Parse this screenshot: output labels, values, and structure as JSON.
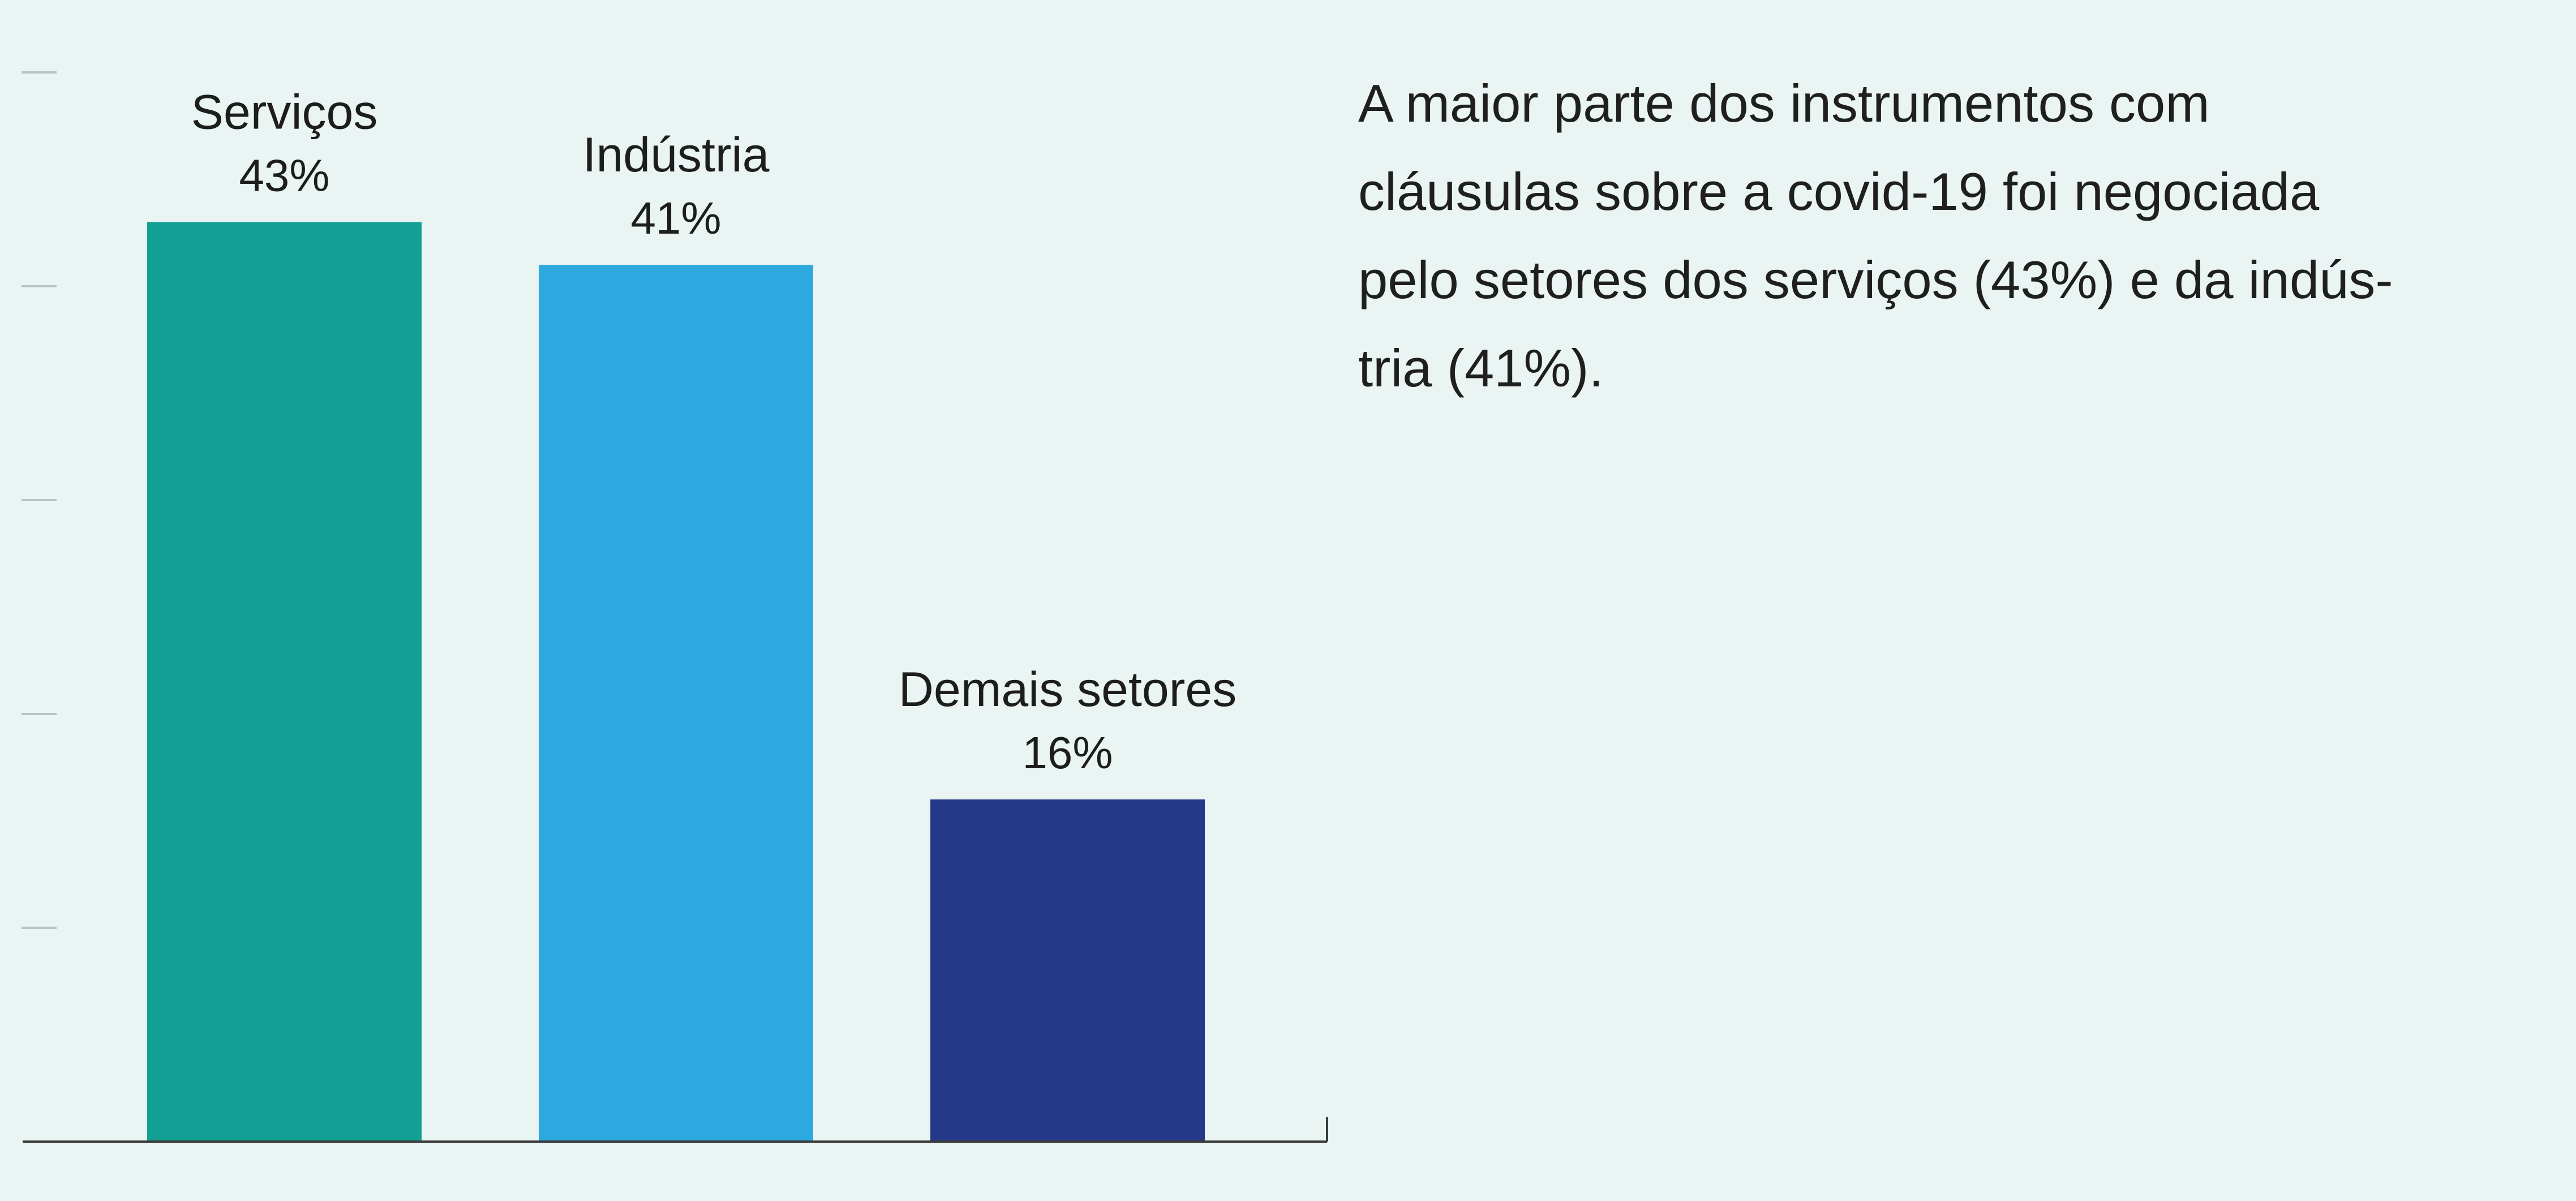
{
  "chart_data": {
    "type": "bar",
    "categories": [
      "Serviços",
      "Indústria",
      "Demais setores"
    ],
    "values": [
      43,
      41,
      16
    ],
    "value_labels": [
      "43%",
      "41%",
      "16%"
    ],
    "colors": [
      "#11a093",
      "#2ea9df",
      "#263889"
    ],
    "ylim": [
      0,
      50
    ],
    "yticks": [
      10,
      20,
      30,
      40,
      50
    ],
    "grid": false,
    "title": "",
    "xlabel": "",
    "ylabel": ""
  },
  "description": {
    "lines": [
      "A maior parte dos instrumentos com",
      "cláusulas sobre a covid-19 foi negociada",
      "pelo setores dos serviços (43%) e da indús-",
      "tria (41%)."
    ]
  }
}
